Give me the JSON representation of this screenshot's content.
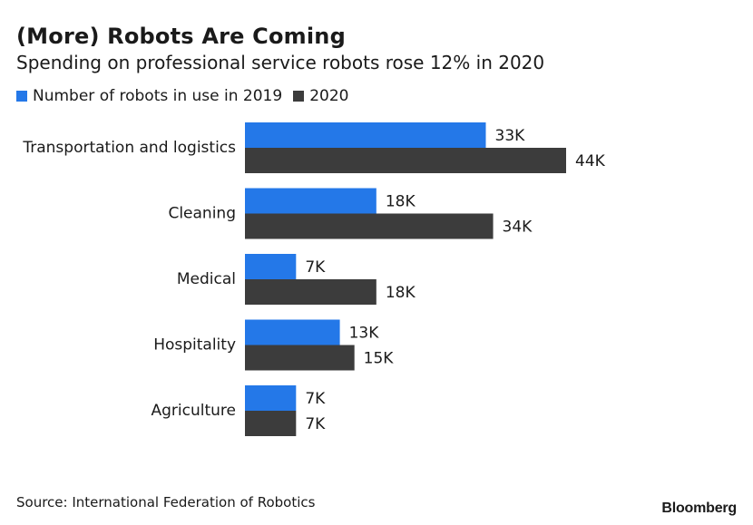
{
  "chart_data": {
    "type": "bar",
    "orientation": "horizontal",
    "title": "(More) Robots Are Coming",
    "subtitle": "Spending on professional service robots rose 12% in 2020",
    "categories": [
      "Transportation and logistics",
      "Cleaning",
      "Medical",
      "Hospitality",
      "Agriculture"
    ],
    "series": [
      {
        "name": "Number of robots in use in 2019",
        "color": "#2478e8",
        "values": [
          33,
          18,
          7,
          13,
          7
        ],
        "labels": [
          "33K",
          "18K",
          "7K",
          "13K",
          "7K"
        ]
      },
      {
        "name": "2020",
        "color": "#3c3c3c",
        "values": [
          44,
          34,
          18,
          15,
          7
        ],
        "labels": [
          "44K",
          "34K",
          "18K",
          "15K",
          "7K"
        ]
      }
    ],
    "xlim": [
      0,
      44
    ],
    "grid": false,
    "legend_position": "top-left"
  },
  "source": "Source: International Federation of Robotics",
  "logo": "Bloomberg"
}
